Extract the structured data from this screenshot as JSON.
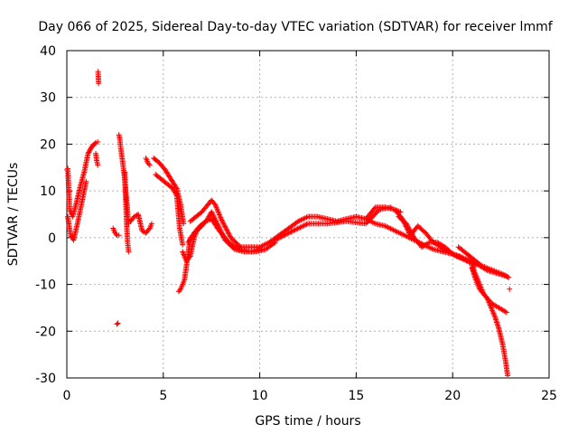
{
  "chart_data": {
    "type": "scatter",
    "title": "Day 066 of 2025, Sidereal Day-to-day VTEC variation (SDTVAR) for receiver lmmf",
    "xlabel": "GPS time / hours",
    "ylabel": "SDTVAR / TECUs",
    "xlim": [
      0,
      25
    ],
    "ylim": [
      -30,
      40
    ],
    "x_ticks": [
      0,
      5,
      10,
      15,
      20,
      25
    ],
    "y_ticks": [
      -30,
      -20,
      -10,
      0,
      10,
      20,
      30,
      40
    ],
    "grid": true,
    "marker": "+",
    "color": "#ff0000",
    "series": [
      {
        "name": "track-a-early",
        "x": [
          0.0,
          0.05,
          0.15,
          0.3,
          0.5,
          0.7,
          0.9,
          1.1,
          1.3,
          1.5,
          1.6
        ],
        "y": [
          14.5,
          14.8,
          6.0,
          4.5,
          7.5,
          11.0,
          14.0,
          18.0,
          19.5,
          20.3,
          20.5
        ]
      },
      {
        "name": "track-b-early",
        "x": [
          0.05,
          0.2,
          0.35,
          0.55,
          0.75,
          0.9,
          1.0
        ],
        "y": [
          4.5,
          0.5,
          -0.5,
          3.0,
          7.0,
          10.0,
          12.0
        ]
      },
      {
        "name": "track-c-early",
        "x": [
          1.5,
          1.55,
          1.6
        ],
        "y": [
          18.0,
          16.5,
          15.5
        ]
      },
      {
        "name": "spike-1.6h",
        "x": [
          1.62,
          1.63,
          1.65
        ],
        "y": [
          35.5,
          34.5,
          33.0
        ]
      },
      {
        "name": "track-2.4h",
        "x": [
          2.4,
          2.5,
          2.6,
          2.7
        ],
        "y": [
          2.0,
          1.0,
          0.5,
          0.5
        ]
      },
      {
        "name": "point-2.6h",
        "x": [
          2.6,
          2.65
        ],
        "y": [
          -18.5,
          -18.3
        ]
      },
      {
        "name": "track-2.8h",
        "x": [
          2.7,
          2.75,
          2.8,
          2.9,
          3.0,
          3.1,
          3.2
        ],
        "y": [
          22.0,
          21.0,
          19.0,
          16.0,
          12.5,
          8.0,
          3.0
        ]
      },
      {
        "name": "track-3.1h",
        "x": [
          3.0,
          3.1,
          3.15,
          3.2
        ],
        "y": [
          14.0,
          3.0,
          -1.0,
          -3.0
        ]
      },
      {
        "name": "track-3.5h",
        "x": [
          3.3,
          3.5,
          3.7,
          3.9,
          4.1,
          4.3,
          4.4
        ],
        "y": [
          3.5,
          4.5,
          5.0,
          1.5,
          1.0,
          2.0,
          3.0
        ]
      },
      {
        "name": "track-4.2h",
        "x": [
          4.1,
          4.2,
          4.3
        ],
        "y": [
          17.0,
          16.0,
          15.5
        ]
      },
      {
        "name": "track-a-mid",
        "x": [
          4.5,
          4.8,
          5.1,
          5.4,
          5.7,
          5.9,
          6.05
        ],
        "y": [
          17.0,
          16.0,
          14.5,
          12.5,
          10.5,
          7.0,
          3.0
        ]
      },
      {
        "name": "track-b-mid",
        "x": [
          4.6,
          4.9,
          5.2,
          5.5,
          5.7,
          5.85,
          6.0
        ],
        "y": [
          13.5,
          12.5,
          11.5,
          10.5,
          9.0,
          2.0,
          -1.5
        ]
      },
      {
        "name": "track-c-mid",
        "x": [
          5.8,
          5.9,
          6.0,
          6.1,
          6.2,
          6.3,
          6.4
        ],
        "y": [
          -11.5,
          -11.0,
          -10.0,
          -9.0,
          -6.0,
          -3.0,
          0.0
        ]
      },
      {
        "name": "track-d-mid",
        "x": [
          6.0,
          6.2,
          6.4,
          6.6,
          6.8
        ],
        "y": [
          -3.0,
          -5.0,
          -4.0,
          0.0,
          2.0
        ]
      },
      {
        "name": "track-e-mid",
        "x": [
          6.4,
          6.7,
          7.0,
          7.3,
          7.5,
          7.7,
          8.0,
          8.5,
          9.0,
          9.5,
          10.0,
          10.5,
          11.0
        ],
        "y": [
          3.5,
          4.5,
          5.5,
          7.0,
          8.0,
          7.0,
          4.0,
          0.0,
          -2.0,
          -2.0,
          -2.0,
          -1.0,
          0.5
        ]
      },
      {
        "name": "track-f-mid",
        "x": [
          6.6,
          7.0,
          7.3,
          7.5,
          7.8,
          8.2,
          8.7,
          9.2,
          9.8,
          10.3,
          10.8
        ],
        "y": [
          1.0,
          2.5,
          4.0,
          5.5,
          3.0,
          -0.5,
          -2.5,
          -3.0,
          -3.0,
          -2.5,
          -1.0
        ]
      },
      {
        "name": "track-g-mid",
        "x": [
          6.3,
          6.6,
          6.9,
          7.2,
          7.5,
          7.9,
          8.4,
          8.9,
          9.5,
          10.1
        ],
        "y": [
          -1.0,
          1.0,
          2.5,
          3.5,
          4.0,
          1.5,
          -1.0,
          -2.5,
          -3.0,
          -2.5
        ]
      },
      {
        "name": "track-a-late",
        "x": [
          11.0,
          11.5,
          12.0,
          12.5,
          13.0,
          13.5,
          14.0,
          14.5,
          15.0,
          15.5,
          16.0,
          16.5,
          17.0,
          17.3
        ],
        "y": [
          0.5,
          2.0,
          3.5,
          4.5,
          4.5,
          4.0,
          3.5,
          4.0,
          4.5,
          4.0,
          6.5,
          6.5,
          6.0,
          5.5
        ]
      },
      {
        "name": "track-b-late",
        "x": [
          10.8,
          11.5,
          12.5,
          13.5,
          14.5,
          15.5,
          16.2,
          16.8
        ],
        "y": [
          -0.5,
          1.0,
          3.0,
          3.0,
          3.5,
          3.0,
          6.0,
          6.5
        ]
      },
      {
        "name": "track-c-late",
        "x": [
          15.5,
          16.0,
          16.5,
          17.0,
          17.5,
          18.0,
          18.5,
          19.0,
          19.5,
          20.0,
          20.5,
          21.0,
          21.2
        ],
        "y": [
          4.0,
          3.0,
          2.5,
          1.5,
          0.5,
          -0.5,
          -1.5,
          -2.5,
          -3.0,
          -3.5,
          -4.5,
          -5.5,
          -6.0
        ]
      },
      {
        "name": "track-d-late",
        "x": [
          17.0,
          17.4,
          17.8,
          18.2,
          18.6,
          19.0,
          19.4,
          19.8,
          20.2,
          20.6,
          21.0,
          21.4,
          21.8,
          22.2,
          22.6,
          22.9
        ],
        "y": [
          6.0,
          4.0,
          0.5,
          2.5,
          1.0,
          -1.0,
          -2.0,
          -3.0,
          -4.0,
          -4.5,
          -5.0,
          -6.0,
          -7.0,
          -7.5,
          -8.0,
          -8.5
        ]
      },
      {
        "name": "track-e-late",
        "x": [
          17.2,
          17.6,
          18.0,
          18.4,
          18.8,
          19.2,
          19.6,
          20.0,
          20.4,
          20.8,
          21.0
        ],
        "y": [
          4.5,
          3.0,
          0.0,
          -2.0,
          -1.0,
          -1.0,
          -2.0,
          -3.5,
          -4.0,
          -5.0,
          -5.5
        ]
      },
      {
        "name": "track-f-late",
        "x": [
          20.3,
          20.6,
          20.9,
          21.2,
          21.5,
          21.8,
          22.1,
          22.4,
          22.7,
          22.9
        ],
        "y": [
          -2.0,
          -3.0,
          -4.0,
          -5.0,
          -6.0,
          -6.5,
          -7.0,
          -7.5,
          -8.0,
          -8.5
        ]
      },
      {
        "name": "track-g-late",
        "x": [
          21.0,
          21.2,
          21.4,
          21.6,
          21.8,
          22.0,
          22.2,
          22.4,
          22.6,
          22.8
        ],
        "y": [
          -6.0,
          -8.0,
          -10.0,
          -12.0,
          -13.0,
          -14.0,
          -14.5,
          -15.0,
          -15.5,
          -16.0
        ]
      },
      {
        "name": "track-h-late",
        "x": [
          21.0,
          21.2,
          21.4,
          21.6,
          21.8,
          22.0,
          22.2,
          22.4,
          22.6,
          22.75,
          22.85
        ],
        "y": [
          -6.5,
          -9.0,
          -11.0,
          -12.0,
          -13.0,
          -15.0,
          -17.0,
          -19.5,
          -23.0,
          -26.5,
          -29.5
        ]
      },
      {
        "name": "point-22.9h",
        "x": [
          22.95
        ],
        "y": [
          -11.0
        ]
      }
    ]
  }
}
